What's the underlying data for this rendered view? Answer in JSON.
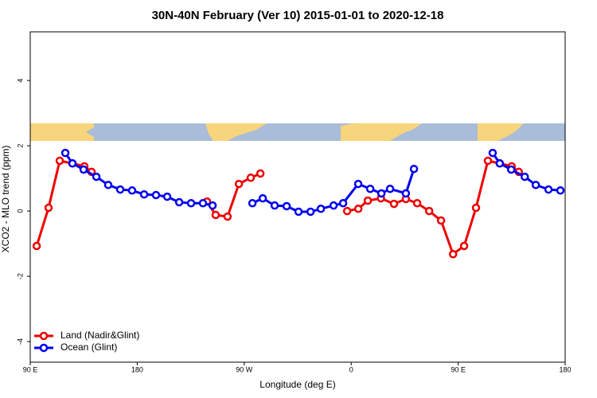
{
  "chart_data": {
    "type": "line",
    "title": "30N-40N February (Ver 10)   2015-01-01 to 2020-12-18",
    "x_label": "Longitude (deg E)",
    "y_label": "XCO2 - MLO trend (ppm)",
    "xlim": [
      90,
      540
    ],
    "ylim": [
      -4.63,
      5.49
    ],
    "xticks": [
      {
        "value": 90,
        "label": "90 E"
      },
      180,
      {
        "value": 270,
        "label": "90 W"
      },
      {
        "value": 360,
        "label": "0"
      },
      {
        "value": 450,
        "label": "90 E"
      },
      {
        "value": 540,
        "label": "180"
      }
    ],
    "yticks": [
      -4,
      -2,
      0,
      2,
      4
    ],
    "legend": "bottom-left",
    "series": [
      {
        "name": "Land (Nadir&Glint)",
        "color": "#ee0000",
        "x": [
          95.4,
          105.4,
          114.8,
          125.5,
          135.5,
          141.6,
          null,
          238.7,
          246,
          256,
          265.5,
          275.5,
          283.6,
          null,
          356.6,
          366,
          374,
          385,
          396,
          406,
          415.5,
          425.6,
          435.6,
          445.7,
          455,
          465,
          475,
          485,
          495,
          501
        ],
        "values": [
          -1.07,
          0.1,
          1.54,
          1.46,
          1.37,
          1.2,
          null,
          0.29,
          -0.12,
          -0.17,
          0.83,
          1.02,
          1.15,
          null,
          0.0,
          0.07,
          0.32,
          0.39,
          0.22,
          0.37,
          0.24,
          0.0,
          -0.29,
          -1.32,
          -1.07,
          0.1,
          1.54,
          1.46,
          1.37,
          1.2
        ]
      },
      {
        "name": "Ocean (Glint)",
        "color": "#0000ee",
        "x": [
          119.5,
          125.5,
          134.9,
          145.6,
          155.6,
          165.7,
          175.7,
          185.8,
          195.8,
          205.2,
          215.3,
          225.3,
          235.3,
          243.4,
          null,
          276.9,
          285.6,
          295.6,
          305.7,
          315.7,
          325.8,
          334.5,
          345.2,
          353.2,
          365.9,
          376,
          385.4,
          392.7,
          406,
          412.8,
          null,
          479,
          485,
          494.6,
          506,
          515.3,
          526,
          536
        ],
        "values": [
          1.78,
          1.46,
          1.27,
          1.05,
          0.8,
          0.66,
          0.63,
          0.51,
          0.49,
          0.44,
          0.27,
          0.24,
          0.24,
          0.17,
          null,
          0.24,
          0.39,
          0.17,
          0.15,
          -0.02,
          -0.02,
          0.07,
          0.17,
          0.24,
          0.83,
          0.68,
          0.54,
          0.68,
          0.54,
          1.29,
          null,
          1.78,
          1.46,
          1.27,
          1.05,
          0.8,
          0.66,
          0.63
        ]
      }
    ]
  }
}
